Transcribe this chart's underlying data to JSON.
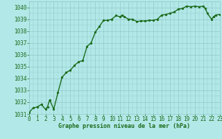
{
  "x": [
    0,
    0.5,
    1,
    1.5,
    2,
    2.25,
    2.5,
    3,
    3.5,
    4,
    4.5,
    5,
    5.5,
    6,
    6.5,
    7,
    7.5,
    8,
    8.5,
    9,
    9.5,
    10,
    10.5,
    11,
    11.25,
    11.5,
    12,
    12.5,
    13,
    13.5,
    14,
    14.5,
    15,
    15.5,
    16,
    16.5,
    17,
    17.5,
    18,
    18.5,
    19,
    19.5,
    20,
    20.5,
    21,
    21.25,
    21.5,
    22,
    22.25,
    22.5,
    23
  ],
  "y": [
    1031.1,
    1031.5,
    1031.6,
    1031.8,
    1031.4,
    1031.6,
    1032.2,
    1031.4,
    1032.8,
    1034.1,
    1034.5,
    1034.7,
    1035.1,
    1035.4,
    1035.5,
    1036.7,
    1037.0,
    1037.9,
    1038.4,
    1038.9,
    1038.9,
    1039.0,
    1039.3,
    1039.2,
    1039.35,
    1039.2,
    1039.0,
    1039.0,
    1038.8,
    1038.85,
    1038.85,
    1038.9,
    1038.9,
    1039.0,
    1039.35,
    1039.4,
    1039.5,
    1039.6,
    1039.85,
    1039.9,
    1040.1,
    1040.05,
    1040.1,
    1040.05,
    1040.1,
    1039.9,
    1039.5,
    1039.0,
    1039.2,
    1039.35,
    1039.4
  ],
  "xlim": [
    0,
    23
  ],
  "ylim": [
    1031,
    1040.5
  ],
  "yticks": [
    1031,
    1032,
    1033,
    1034,
    1035,
    1036,
    1037,
    1038,
    1039,
    1040
  ],
  "xticks": [
    0,
    1,
    2,
    3,
    4,
    5,
    6,
    7,
    8,
    9,
    10,
    11,
    12,
    13,
    14,
    15,
    16,
    17,
    18,
    19,
    20,
    21,
    22,
    23
  ],
  "xlabel": "Graphe pression niveau de la mer (hPa)",
  "line_color": "#1a6b1a",
  "marker_color": "#1a6b1a",
  "bg_color": "#b3e8e8",
  "grid_color": "#90c8c8",
  "tick_color": "#1a6b1a",
  "xlabel_color": "#1a6b1a",
  "xlabel_fontsize": 6.0,
  "tick_fontsize": 5.5,
  "line_width": 1.0,
  "marker_size": 2.0
}
